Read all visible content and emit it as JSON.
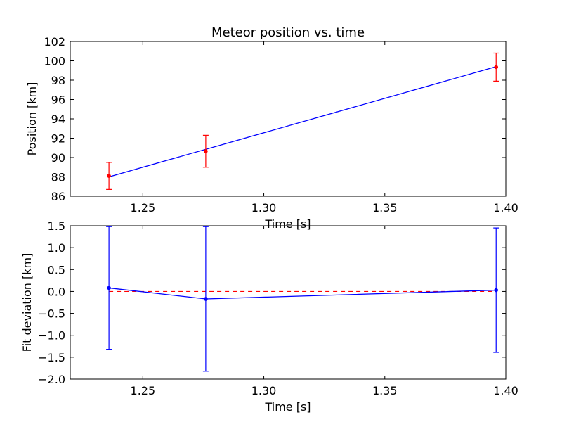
{
  "chart_data": [
    {
      "type": "line",
      "title": "Meteor position vs. time",
      "xlabel": "Time [s]",
      "ylabel": "Position [km]",
      "xlim": [
        1.22,
        1.4
      ],
      "ylim": [
        86,
        102
      ],
      "xticks": [
        1.25,
        1.3,
        1.35,
        1.4
      ],
      "xtick_labels": [
        "1.25",
        "1.30",
        "1.35",
        "1.40"
      ],
      "yticks": [
        86,
        88,
        90,
        92,
        94,
        96,
        98,
        100,
        102
      ],
      "ytick_labels": [
        "86",
        "88",
        "90",
        "92",
        "94",
        "96",
        "98",
        "100",
        "102"
      ],
      "grid": false,
      "colors": {
        "line": "#0000ff",
        "points": "#ff0000",
        "errorbars": "#ff0000"
      },
      "line": {
        "x": [
          1.236,
          1.396
        ],
        "y": [
          88.0,
          99.4
        ]
      },
      "series": [
        {
          "x": [
            1.236,
            1.276,
            1.396
          ],
          "y": [
            88.1,
            90.65,
            99.35
          ],
          "yerr": [
            1.4,
            1.65,
            1.45
          ]
        }
      ]
    },
    {
      "type": "line",
      "title": "",
      "xlabel": "Time [s]",
      "ylabel": "Fit deviation [km]",
      "xlim": [
        1.22,
        1.4
      ],
      "ylim": [
        -2.0,
        1.5
      ],
      "xticks": [
        1.25,
        1.3,
        1.35,
        1.4
      ],
      "xtick_labels": [
        "1.25",
        "1.30",
        "1.35",
        "1.40"
      ],
      "yticks": [
        -2.0,
        -1.5,
        -1.0,
        -0.5,
        0.0,
        0.5,
        1.0,
        1.5
      ],
      "ytick_labels": [
        "−2.0",
        "−1.5",
        "−1.0",
        "−0.5",
        "0.0",
        "0.5",
        "1.0",
        "1.5"
      ],
      "grid": false,
      "colors": {
        "line": "#0000ff",
        "points": "#0000ff",
        "errorbars": "#0000ff",
        "reference": "#ff0000"
      },
      "reference_line": {
        "y": 0.0,
        "style": "dashed"
      },
      "series": [
        {
          "x": [
            1.236,
            1.276,
            1.396
          ],
          "y": [
            0.08,
            -0.17,
            0.03
          ],
          "yerr": [
            1.4,
            1.65,
            1.42
          ]
        }
      ]
    }
  ]
}
